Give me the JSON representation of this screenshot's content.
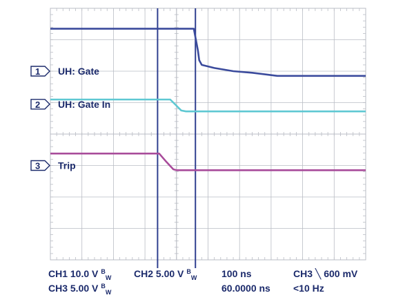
{
  "chart_data": {
    "type": "line",
    "title": "",
    "xlabel": "",
    "ylabel": "",
    "grid": true,
    "divisions": {
      "x": 10,
      "y": 8
    },
    "xlim": [
      -4,
      6
    ],
    "ylim": [
      -4,
      4
    ],
    "cursors_x": [
      -0.6,
      0.6
    ],
    "series": [
      {
        "name": "UH: Gate",
        "marker": "1",
        "color": "#3a4a9c",
        "points": [
          [
            -4,
            3.35
          ],
          [
            0.55,
            3.35
          ],
          [
            0.68,
            2.65
          ],
          [
            0.72,
            2.35
          ],
          [
            0.8,
            2.2
          ],
          [
            1.2,
            2.1
          ],
          [
            1.8,
            2.0
          ],
          [
            2.4,
            1.95
          ],
          [
            3.2,
            1.85
          ],
          [
            6,
            1.85
          ]
        ]
      },
      {
        "name": "UH: Gate In",
        "marker": "2",
        "color": "#5ec8d2",
        "points": [
          [
            -4,
            1.1
          ],
          [
            -0.2,
            1.1
          ],
          [
            0.0,
            0.9
          ],
          [
            0.15,
            0.75
          ],
          [
            0.3,
            0.72
          ],
          [
            6,
            0.72
          ]
        ]
      },
      {
        "name": "Trip",
        "marker": "3",
        "color": "#a84b9a",
        "points": [
          [
            -4,
            -0.62
          ],
          [
            -0.55,
            -0.62
          ],
          [
            -0.35,
            -0.85
          ],
          [
            -0.1,
            -1.12
          ],
          [
            0.0,
            -1.15
          ],
          [
            6,
            -1.15
          ]
        ]
      }
    ],
    "markers": [
      {
        "number": "1",
        "label": "UH: Gate",
        "level": 2.0
      },
      {
        "number": "2",
        "label": "UH: Gate In",
        "level": 0.95
      },
      {
        "number": "3",
        "label": "Trip",
        "level": -1.0
      }
    ]
  },
  "readouts": {
    "ch1_scale": "CH1 10.0 V",
    "ch2_scale": "CH2  5.00 V",
    "ch3_scale": "CH3 5.00 V",
    "bw": "W",
    "timebase": "100 ns",
    "delay": "60.0000 ns",
    "ch3_trigger": "CH3 ╲ 600 mV",
    "trigger_freq": "<10 Hz"
  }
}
